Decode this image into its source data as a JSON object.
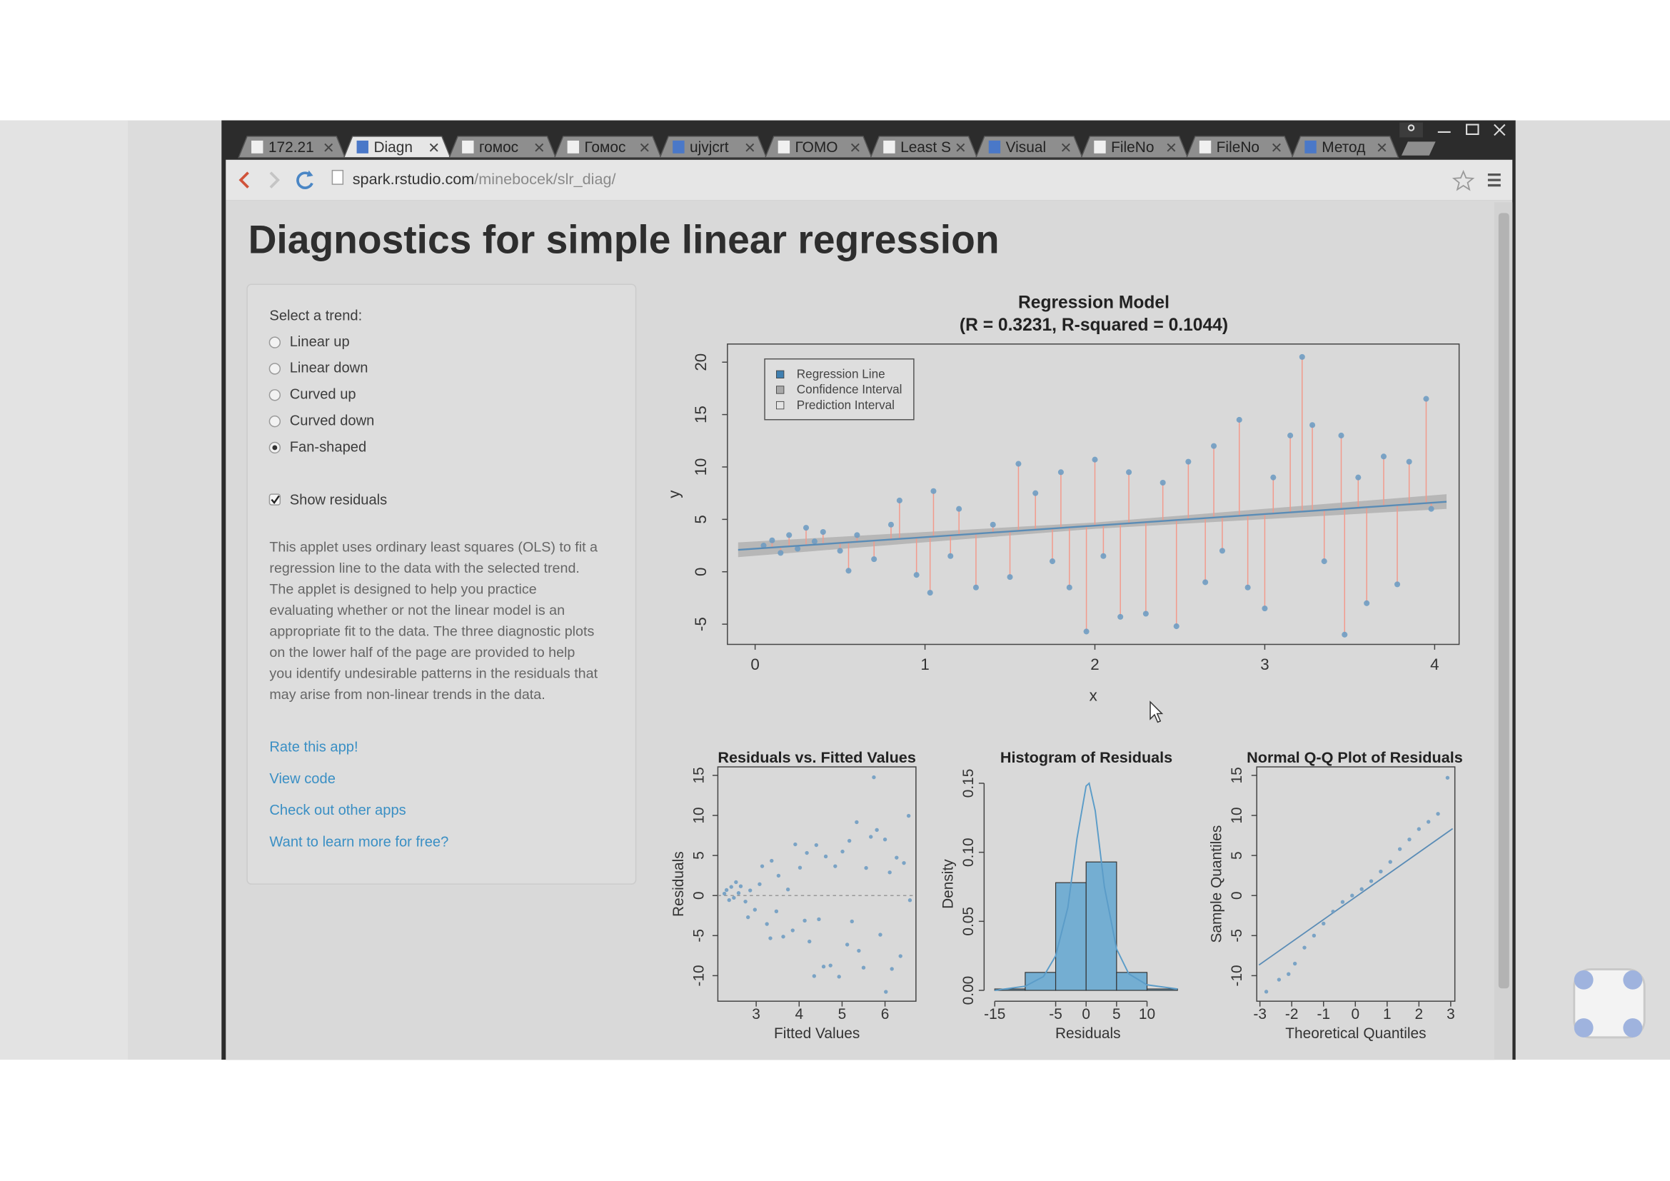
{
  "browser": {
    "tabs": [
      "172.21",
      "Diagn",
      "гомос",
      "Гомос",
      "ujvjcrt",
      "ГОМО",
      "Least S",
      "Visual",
      "FileNo",
      "FileNo",
      "Метод"
    ],
    "active_tab": "Diagn",
    "url_host": "spark.rstudio.com",
    "url_path": "/minebocek/slr_diag/"
  },
  "page": {
    "title": "Diagnostics for simple linear regression",
    "sidebar": {
      "trend_label": "Select a trend:",
      "trends": [
        {
          "label": "Linear up",
          "selected": false
        },
        {
          "label": "Linear down",
          "selected": false
        },
        {
          "label": "Curved up",
          "selected": false
        },
        {
          "label": "Curved down",
          "selected": false
        },
        {
          "label": "Fan-shaped",
          "selected": true
        }
      ],
      "show_residuals_label": "Show residuals",
      "show_residuals": true,
      "description": [
        "This applet uses ordinary least squares (OLS) to fit a",
        "regression line to the data with the selected trend.",
        "The applet is designed to help you practice",
        "evaluating whether or not the linear model is an",
        "appropriate fit to the data. The three diagnostic plots",
        "on the lower half of the page are provided to help",
        "you identify undesirable patterns in the residuals that",
        "may arise from non-linear trends in the data."
      ],
      "links": [
        "Rate this app!",
        "View code",
        "Check out other apps",
        "Want to learn more for free?"
      ]
    }
  },
  "chart_data": [
    {
      "type": "scatter",
      "title": "Regression Model",
      "subtitle": "(R = 0.3231, R-squared = 0.1044)",
      "x_label": "x",
      "y_label": "y",
      "x": [
        0.05,
        0.1,
        0.15,
        0.2,
        0.25,
        0.3,
        0.35,
        0.4,
        0.5,
        0.55,
        0.6,
        0.7,
        0.8,
        0.85,
        0.95,
        1.03,
        1.05,
        1.15,
        1.2,
        1.3,
        1.4,
        1.5,
        1.55,
        1.65,
        1.75,
        1.8,
        1.85,
        1.95,
        2.0,
        2.05,
        2.15,
        2.2,
        2.3,
        2.4,
        2.48,
        2.55,
        2.65,
        2.7,
        2.75,
        2.85,
        2.9,
        3.0,
        3.05,
        3.15,
        3.22,
        3.28,
        3.35,
        3.45,
        3.47,
        3.55,
        3.6,
        3.7,
        3.78,
        3.85,
        3.95,
        3.98
      ],
      "values": [
        2.5,
        3.0,
        1.8,
        3.5,
        2.2,
        4.2,
        2.9,
        3.8,
        2.0,
        0.1,
        3.5,
        1.2,
        4.5,
        6.8,
        -0.3,
        -2.0,
        7.7,
        1.5,
        6.0,
        -1.5,
        4.5,
        -0.5,
        10.3,
        7.5,
        1.0,
        9.5,
        -1.5,
        -5.7,
        10.7,
        1.5,
        -4.3,
        9.5,
        -4.0,
        8.5,
        -5.2,
        10.5,
        -1.0,
        12.0,
        2.0,
        14.5,
        -1.5,
        -3.5,
        9.0,
        13.0,
        20.5,
        14.0,
        1.0,
        13.0,
        -6.0,
        9.0,
        -3.0,
        11.0,
        -1.2,
        10.5,
        16.5,
        6.0
      ],
      "color": "#6f9cc2",
      "residual_color": "#f29a8c",
      "show_residuals": true,
      "regression_line": {
        "x": [
          -0.1,
          4.07
        ],
        "values": [
          2.09,
          6.68
        ],
        "color": "#5a8cb6"
      },
      "confidence_band": {
        "x": [
          -0.1,
          2.0,
          4.07
        ],
        "lower": [
          1.4,
          4.1,
          6.0
        ],
        "upper": [
          2.8,
          4.7,
          7.4
        ],
        "color": "#9a9a9a"
      },
      "legend": [
        {
          "name": "Regression Line",
          "color": "#3f7fb0"
        },
        {
          "name": "Confidence Interval",
          "color": "#a8a8a8"
        },
        {
          "name": "Prediction Interval",
          "color": "#e4e4e4"
        }
      ],
      "legend_position": "top-left",
      "box": true,
      "xlim": [
        -0.163,
        4.144
      ],
      "ylim": [
        -6.93,
        21.73
      ],
      "xticks": [
        0,
        1,
        2,
        3,
        4
      ],
      "yticks": [
        -5,
        0,
        5,
        10,
        15,
        20
      ]
    },
    {
      "type": "scatter",
      "title": "Residuals vs. Fitted Values",
      "x_label": "Fitted Values",
      "y_label": "Residuals",
      "x": [
        2.26,
        2.31,
        2.37,
        2.42,
        2.48,
        2.53,
        2.59,
        2.64,
        2.75,
        2.81,
        2.86,
        2.97,
        3.08,
        3.14,
        3.25,
        3.33,
        3.36,
        3.47,
        3.52,
        3.63,
        3.74,
        3.85,
        3.91,
        4.02,
        4.13,
        4.18,
        4.24,
        4.35,
        4.4,
        4.46,
        4.57,
        4.62,
        4.73,
        4.84,
        4.93,
        5.01,
        5.12,
        5.17,
        5.23,
        5.34,
        5.39,
        5.5,
        5.56,
        5.67,
        5.74,
        5.81,
        5.89,
        6.0,
        6.02,
        6.11,
        6.16,
        6.27,
        6.36,
        6.44,
        6.55,
        6.58
      ],
      "values": [
        0.24,
        0.69,
        -0.57,
        1.08,
        -0.28,
        1.67,
        0.31,
        1.16,
        -0.75,
        -2.71,
        0.64,
        -1.77,
        1.42,
        3.66,
        -3.55,
        -5.33,
        4.34,
        -1.97,
        2.48,
        -5.13,
        0.76,
        -4.35,
        6.39,
        3.48,
        -3.13,
        5.32,
        -5.74,
        -10.05,
        6.3,
        -2.96,
        -8.87,
        4.88,
        -8.73,
        3.66,
        -10.13,
        5.49,
        -6.12,
        6.83,
        -3.23,
        9.16,
        -6.89,
        -9.0,
        3.44,
        7.33,
        14.76,
        8.19,
        -4.89,
        7.0,
        -12.02,
        2.89,
        -9.16,
        4.73,
        -7.56,
        4.06,
        9.95,
        -0.58
      ],
      "color": "#6f9cc2",
      "hline": 0,
      "box": true,
      "xlim": [
        2.107,
        6.72
      ],
      "ylim": [
        -13.19,
        16.06
      ],
      "xticks": [
        3,
        4,
        5,
        6
      ],
      "yticks": [
        -10,
        -5,
        0,
        5,
        10,
        15
      ]
    },
    {
      "type": "histogram",
      "title": "Histogram of Residuals",
      "x_label": "Residuals",
      "y_label": "Density",
      "bins": [
        -15,
        -10,
        -5,
        0,
        5,
        10,
        15
      ],
      "values": [
        0.001,
        0.013,
        0.078,
        0.093,
        0.013,
        0.001
      ],
      "color": "#74aed2",
      "density": {
        "x": [
          -15,
          -10,
          -7,
          -5,
          -3,
          -1.5,
          0,
          0.5,
          1.5,
          3,
          5,
          7,
          10,
          15
        ],
        "values": [
          0,
          0.003,
          0.01,
          0.025,
          0.06,
          0.11,
          0.148,
          0.15,
          0.13,
          0.075,
          0.03,
          0.012,
          0.004,
          0.001
        ],
        "color": "#5b9cc8"
      },
      "box": false,
      "xlim": [
        -15.7,
        16.3
      ],
      "ylim": [
        -0.004,
        0.158
      ],
      "xticks": [
        -15,
        -5,
        0,
        5,
        10
      ],
      "yticks": [
        {
          "value": 0,
          "label": "0.00"
        },
        0.05,
        {
          "value": 0.1,
          "label": "0.10"
        },
        0.15
      ]
    },
    {
      "type": "scatter",
      "title": "Normal Q-Q Plot of Residuals",
      "x_label": "Theoretical Quantiles",
      "y_label": "Sample Quantiles",
      "x": [
        -2.8,
        -2.4,
        -2.1,
        -1.9,
        -1.6,
        -1.3,
        -1.0,
        -0.7,
        -0.4,
        -0.1,
        0.2,
        0.5,
        0.8,
        1.1,
        1.4,
        1.7,
        2.0,
        2.3,
        2.6,
        2.9
      ],
      "values": [
        -12,
        -10.5,
        -9.8,
        -8.5,
        -6.5,
        -5,
        -3.5,
        -2,
        -0.8,
        0,
        0.8,
        1.8,
        3,
        4.2,
        5.8,
        7,
        8.3,
        9.2,
        10.2,
        14.7
      ],
      "color": "#6f9cc2",
      "reference_line": {
        "x": [
          -3.03,
          3.06
        ],
        "values": [
          -8.67,
          8.35
        ],
        "color": "#5a8cb6"
      },
      "box": true,
      "xlim": [
        -3.1,
        3.13
      ],
      "ylim": [
        -13.19,
        16.06
      ],
      "xticks": [
        -3,
        -2,
        -1,
        0,
        1,
        2,
        3
      ],
      "yticks": [
        -10,
        -5,
        0,
        5,
        10,
        15
      ]
    }
  ]
}
